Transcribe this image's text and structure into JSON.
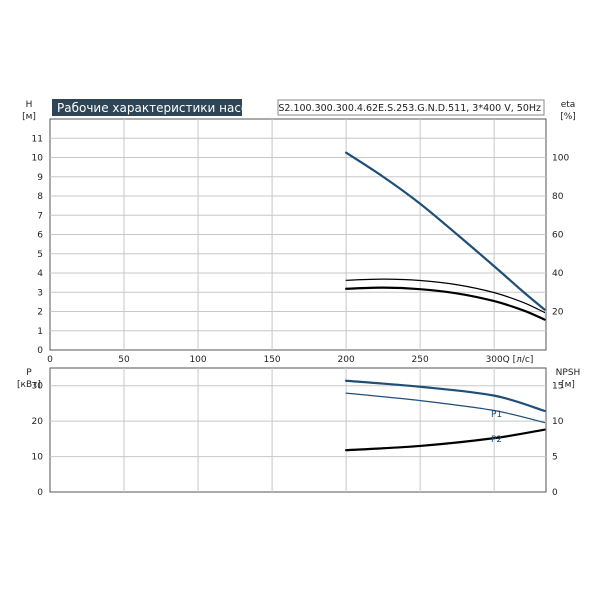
{
  "chart_title": "Рабочие характеристики насоса",
  "model": "S2.100.300.300.4.62E.S.253.G.N.D.511, 3*400 V, 50Hz",
  "colors": {
    "blue": "#1f4e79",
    "black": "#000000",
    "title_bg": "#2d4557"
  },
  "chart_data": [
    {
      "type": "line",
      "xlabel": "Q [л/с]",
      "xlim": [
        0,
        335
      ],
      "x_ticks": [
        "0",
        "50",
        "100",
        "150",
        "200",
        "250",
        "300"
      ],
      "y_left_label": "H",
      "y_left_unit": "[м]",
      "y_left_lim": [
        0,
        12
      ],
      "y_left_ticks": [
        "0",
        "1",
        "2",
        "3",
        "4",
        "5",
        "6",
        "7",
        "8",
        "9",
        "10",
        "11"
      ],
      "y_right_label": "eta",
      "y_right_unit": "[%]",
      "y_right_lim": [
        0,
        120
      ],
      "y_right_ticks": [
        "20",
        "40",
        "60",
        "80",
        "100"
      ],
      "series": [
        {
          "axis": "left",
          "color": "#1f4e79",
          "width": 2.2,
          "x": [
            200,
            225,
            250,
            275,
            300,
            320,
            334
          ],
          "y": [
            10.25,
            9.0,
            7.6,
            6.0,
            4.35,
            3.0,
            2.1
          ]
        },
        {
          "axis": "right",
          "color": "#000000",
          "width": 1.2,
          "x": [
            200,
            225,
            250,
            275,
            300,
            320,
            334
          ],
          "y": [
            36.2,
            36.8,
            36.1,
            33.9,
            29.8,
            24.6,
            19.5
          ]
        },
        {
          "axis": "right",
          "color": "#000000",
          "width": 2.2,
          "x": [
            200,
            225,
            250,
            275,
            300,
            320,
            334
          ],
          "y": [
            31.8,
            32.4,
            31.6,
            29.4,
            25.4,
            20.5,
            15.8
          ]
        }
      ]
    },
    {
      "type": "line",
      "xlim": [
        0,
        335
      ],
      "y_left_label": "P",
      "y_left_unit": "[кВт]",
      "y_left_lim": [
        0,
        35
      ],
      "y_left_ticks": [
        "0",
        "10",
        "20",
        "30"
      ],
      "y_right_label": "NPSH",
      "y_right_unit": "[м]",
      "y_right_lim": [
        0,
        17.5
      ],
      "y_right_ticks": [
        "0",
        "5",
        "10",
        "15"
      ],
      "series": [
        {
          "name": "P1",
          "axis": "left",
          "color": "#1f4e79",
          "width": 2.2,
          "x": [
            200,
            250,
            300,
            334
          ],
          "y": [
            31.4,
            29.7,
            27.2,
            22.9
          ]
        },
        {
          "axis": "left",
          "color": "#1f4e79",
          "width": 1.2,
          "x": [
            200,
            250,
            300,
            334
          ],
          "y": [
            27.9,
            25.8,
            23.0,
            19.6
          ]
        },
        {
          "name": "P2",
          "axis": "right",
          "color": "#000000",
          "width": 2.2,
          "x": [
            200,
            250,
            300,
            334
          ],
          "y": [
            5.9,
            6.5,
            7.6,
            8.8
          ]
        }
      ]
    }
  ]
}
